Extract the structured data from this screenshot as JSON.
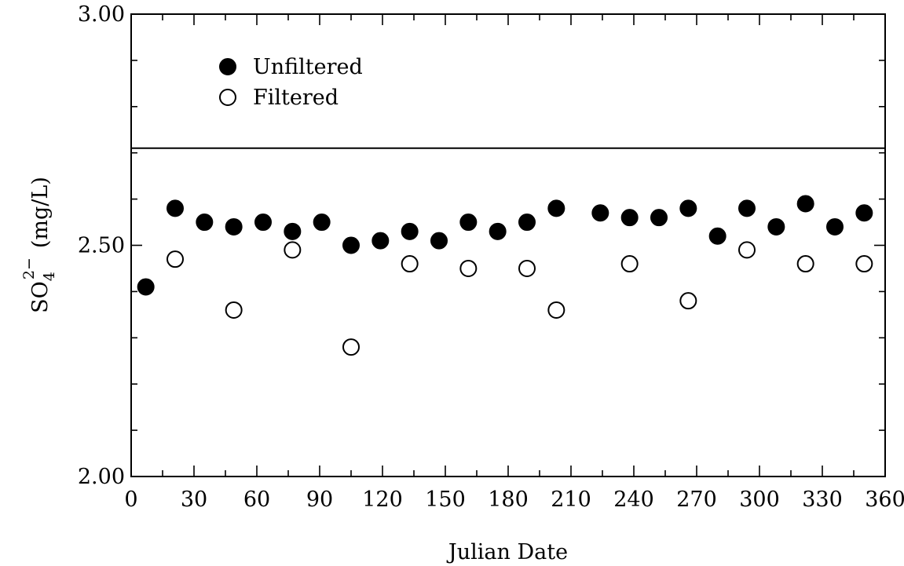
{
  "chart_data": {
    "type": "scatter",
    "title": "",
    "xlabel": "Julian Date",
    "ylabel": "(mg/L)",
    "ylabel_species": {
      "base": "SO",
      "subscript": "4",
      "superscript": "2−"
    },
    "xlim": [
      0,
      360
    ],
    "ylim": [
      2.0,
      3.0
    ],
    "xticks": [
      0,
      30,
      60,
      90,
      120,
      150,
      180,
      210,
      240,
      270,
      300,
      330,
      360
    ],
    "yticks": [
      2.0,
      2.5,
      3.0
    ],
    "ytick_labels": [
      "2.00",
      "2.50",
      "3.00"
    ],
    "grid": false,
    "legend_position": "top-left",
    "reference_line": {
      "y": 2.71
    },
    "series": [
      {
        "name": "Unfiltered",
        "marker": "filled-circle",
        "color": "#000000",
        "x": [
          7,
          21,
          35,
          49,
          63,
          77,
          91,
          105,
          119,
          133,
          147,
          161,
          175,
          189,
          203,
          224,
          238,
          252,
          266,
          280,
          294,
          308,
          322,
          336,
          350
        ],
        "y": [
          2.41,
          2.58,
          2.55,
          2.54,
          2.55,
          2.53,
          2.55,
          2.5,
          2.51,
          2.53,
          2.51,
          2.55,
          2.53,
          2.55,
          2.58,
          2.57,
          2.56,
          2.56,
          2.58,
          2.52,
          2.58,
          2.54,
          2.59,
          2.54,
          2.57
        ]
      },
      {
        "name": "Filtered",
        "marker": "open-circle",
        "color": "#000000",
        "x": [
          21,
          49,
          77,
          105,
          133,
          161,
          189,
          203,
          238,
          266,
          294,
          322,
          350
        ],
        "y": [
          2.47,
          2.36,
          2.49,
          2.28,
          2.46,
          2.45,
          2.45,
          2.36,
          2.46,
          2.38,
          2.49,
          2.46,
          2.46
        ]
      }
    ]
  }
}
